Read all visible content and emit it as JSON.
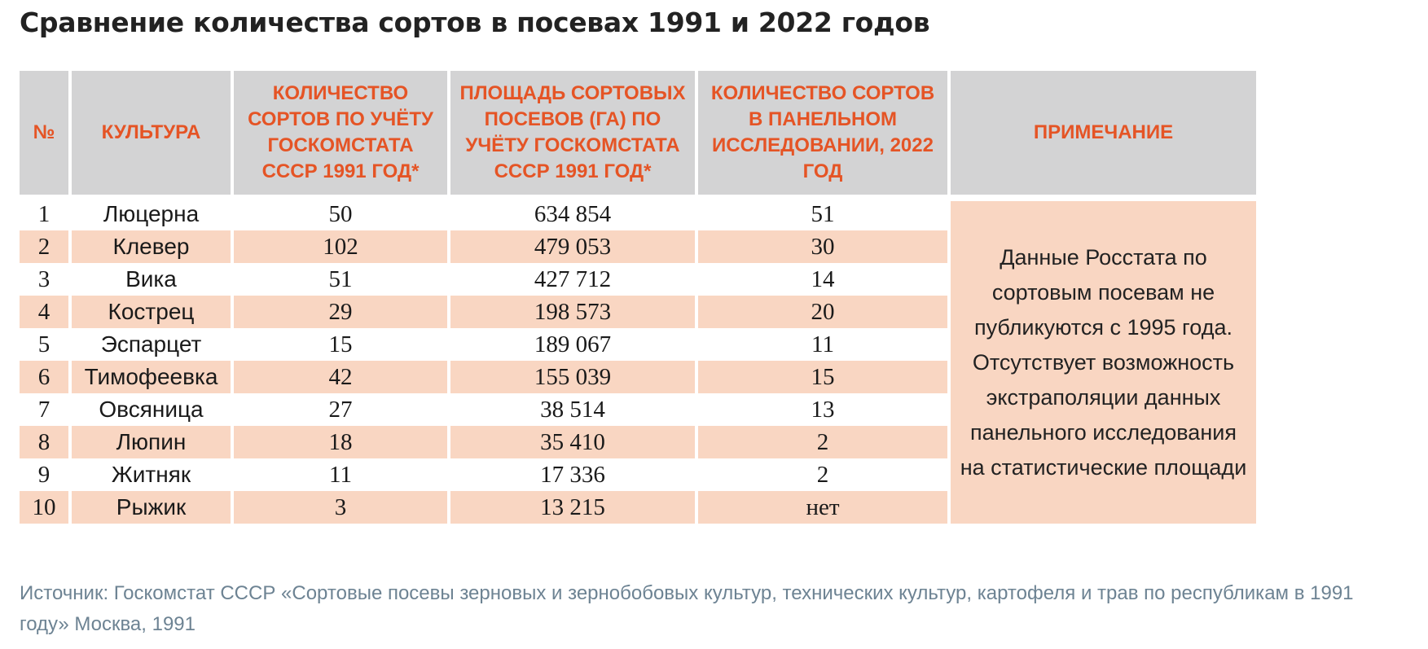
{
  "title": "Сравнение количества сортов в посевах 1991 и 2022 годов",
  "table": {
    "headers": [
      "№",
      "Культура",
      "Количество сортов по учёту Госкомстата СССР 1991 год*",
      "Площадь сортовых посевов (га) по учёту Госкомстата СССР 1991 год*",
      "Количество сортов в панельном исследовании, 2022 год",
      "Примечание"
    ],
    "rows": [
      [
        "1",
        "Люцерна",
        "50",
        "634 854",
        "51"
      ],
      [
        "2",
        "Клевер",
        "102",
        "479 053",
        "30"
      ],
      [
        "3",
        "Вика",
        "51",
        "427 712",
        "14"
      ],
      [
        "4",
        "Кострец",
        "29",
        "198 573",
        "20"
      ],
      [
        "5",
        "Эспарцет",
        "15",
        "189 067",
        "11"
      ],
      [
        "6",
        "Тимофеевка",
        "42",
        "155 039",
        "15"
      ],
      [
        "7",
        "Овсяница",
        "27",
        "38 514",
        "13"
      ],
      [
        "8",
        "Люпин",
        "18",
        "35 410",
        "2"
      ],
      [
        "9",
        "Житняк",
        "11",
        "17 336",
        "2"
      ],
      [
        "10",
        "Рыжик",
        "3",
        "13 215",
        "нет"
      ]
    ],
    "note": "Данные Росстата по сортовым посевам не публикуются с 1995 года. Отсутствует возможность экстраполяции данных панельного исследования на статистические площади"
  },
  "source": "Источник: Госкомстат СССР «Сортовые посевы зерновых и зернобобовых культур, технических культур, картофеля и трав по республикам в 1991 году» Москва, 1991",
  "colors": {
    "header_bg": "#d3d3d4",
    "header_text": "#e55425",
    "stripe": "#f9d6c2",
    "source_text": "#6d8393"
  }
}
